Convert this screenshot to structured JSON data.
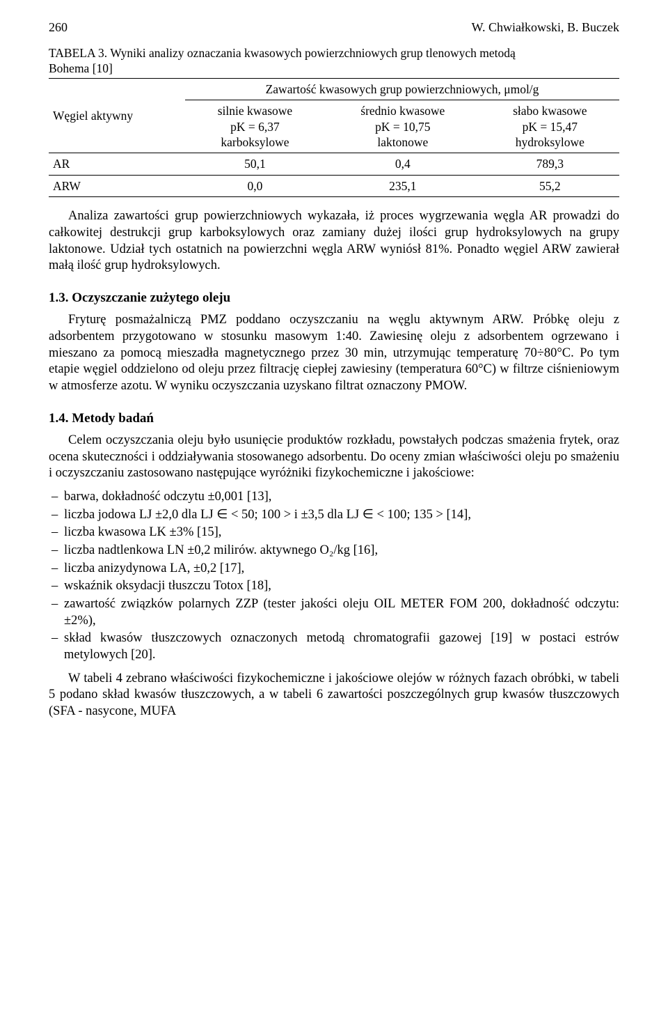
{
  "page_number": "260",
  "running_authors": "W. Chwiałkowski, B. Buczek",
  "table3": {
    "label": "TABELA 3. ",
    "title": "Wyniki analizy oznaczania kwasowych powierzchniowych grup tlenowych metodą\nBohema [10]",
    "super_header": "Zawartość kwasowych grup powierzchniowych, μmol/g",
    "row_header": "Węgiel aktywny",
    "col_headers": [
      "silnie kwasowe\npK = 6,37\nkarboksylowe",
      "średnio kwasowe\npK = 10,75\nlaktonowe",
      "słabo kwasowe\npK = 15,47\nhydroksylowe"
    ],
    "rows": [
      {
        "label": "AR",
        "v": [
          "50,1",
          "0,4",
          "789,3"
        ]
      },
      {
        "label": "ARW",
        "v": [
          "0,0",
          "235,1",
          "55,2"
        ]
      }
    ]
  },
  "p1": "Analiza zawartości grup powierzchniowych wykazała, iż proces wygrzewania węgla AR prowadzi do całkowitej destrukcji grup karboksylowych oraz zamiany dużej ilości grup hydroksylowych na grupy laktonowe. Udział tych ostatnich na powierzchni węgla ARW wyniósł 81%. Ponadto węgiel ARW zawierał małą ilość grup hydroksylowych.",
  "sec13": {
    "heading": "1.3. Oczyszczanie zużytego oleju",
    "p": "Fryturę posmażalniczą PMZ poddano oczyszczaniu na węglu aktywnym ARW. Próbkę oleju z adsorbentem przygotowano w stosunku masowym 1:40. Zawiesinę oleju z adsorbentem ogrzewano i mieszano za pomocą mieszadła magnetycznego przez 30 min, utrzymując temperaturę 70÷80°C. Po tym etapie węgiel oddzielono od oleju przez filtrację ciepłej zawiesiny (temperatura 60°C) w filtrze ciśnieniowym w atmosferze azotu. W wyniku oczyszczania uzyskano filtrat oznaczony PMOW."
  },
  "sec14": {
    "heading": "1.4. Metody badań",
    "p": "Celem oczyszczania oleju było usunięcie produktów rozkładu, powstałych podczas smażenia frytek, oraz ocena skuteczności i oddziaływania stosowanego adsorbentu. Do oceny zmian właściwości oleju po smażeniu i oczyszczaniu zastosowano następujące wyróżniki fizykochemiczne i jakościowe:",
    "items": [
      "barwa, dokładność odczytu ±0,001 [13],",
      "liczba jodowa LJ ±2,0 dla LJ ∈ < 50; 100 > i ±3,5 dla LJ ∈ < 100; 135 > [14],",
      "liczba kwasowa LK ±3% [15],",
      "liczba nadtlenkowa LN ±0,2 milirów. aktywnego O₂/kg [16],",
      "liczba anizydynowa LA, ±0,2 [17],",
      "wskaźnik oksydacji tłuszczu Totox [18],",
      "zawartość związków polarnych ZZP (tester jakości oleju OIL METER FOM 200, dokładność odczytu: ±2%),",
      "skład kwasów tłuszczowych oznaczonych metodą chromatografii gazowej [19] w postaci estrów metylowych [20]."
    ],
    "p_after": "W tabeli 4 zebrano właściwości fizykochemiczne i jakościowe olejów w różnych fazach obróbki, w tabeli 5 podano skład kwasów tłuszczowych, a w tabeli 6 zawartości poszczególnych grup kwasów tłuszczowych (SFA - nasycone, MUFA"
  }
}
